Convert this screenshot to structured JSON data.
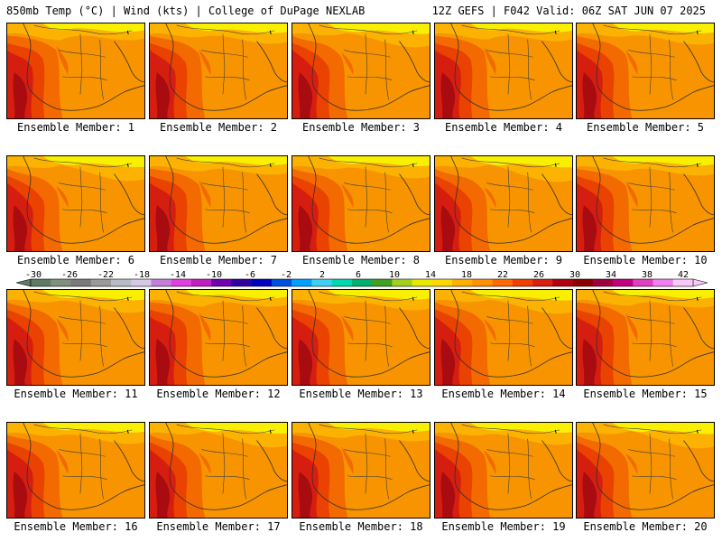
{
  "header": {
    "left_title": "850mb Temp (°C) | Wind (kts) | College of DuPage NEXLAB",
    "right_title": "12Z GEFS | F042 Valid: 06Z SAT JUN 07 2025"
  },
  "panel_labels": [
    "Ensemble Member: 1",
    "Ensemble Member: 2",
    "Ensemble Member: 3",
    "Ensemble Member: 4",
    "Ensemble Member: 5",
    "Ensemble Member: 6",
    "Ensemble Member: 7",
    "Ensemble Member: 8",
    "Ensemble Member: 9",
    "Ensemble Member: 10",
    "Ensemble Member: 11",
    "Ensemble Member: 12",
    "Ensemble Member: 13",
    "Ensemble Member: 14",
    "Ensemble Member: 15",
    "Ensemble Member: 16",
    "Ensemble Member: 17",
    "Ensemble Member: 18",
    "Ensemble Member: 19",
    "Ensemble Member: 20"
  ],
  "colorbar": {
    "tick_labels": [
      "-30",
      "-26",
      "-22",
      "-18",
      "-14",
      "-10",
      "-6",
      "-2",
      "2",
      "6",
      "10",
      "14",
      "18",
      "22",
      "26",
      "30",
      "34",
      "38",
      "42"
    ],
    "colors": [
      "#5f7a66",
      "#7f8f80",
      "#7a7a7a",
      "#9a9a9a",
      "#b8bcc4",
      "#d8c8e8",
      "#c080d8",
      "#e040e0",
      "#c020c0",
      "#7000b0",
      "#3000a0",
      "#0000c0",
      "#0050e0",
      "#00a0ff",
      "#40d0f0",
      "#00d8b0",
      "#00b070",
      "#40a020",
      "#a0d020",
      "#e8e800",
      "#ffd800",
      "#ffb000",
      "#ff9000",
      "#ff6a00",
      "#f04000",
      "#d82010",
      "#b00010",
      "#8a0000",
      "#a00040",
      "#c00080",
      "#e040c0",
      "#f080f0",
      "#f8c8f8"
    ]
  },
  "map_colors": {
    "yellow": "#f8f000",
    "light_orange": "#fbb200",
    "orange": "#f79400",
    "dark_orange": "#f26a00",
    "red_orange": "#ea4200",
    "red": "#d61e10",
    "dark_red": "#a80c10"
  }
}
